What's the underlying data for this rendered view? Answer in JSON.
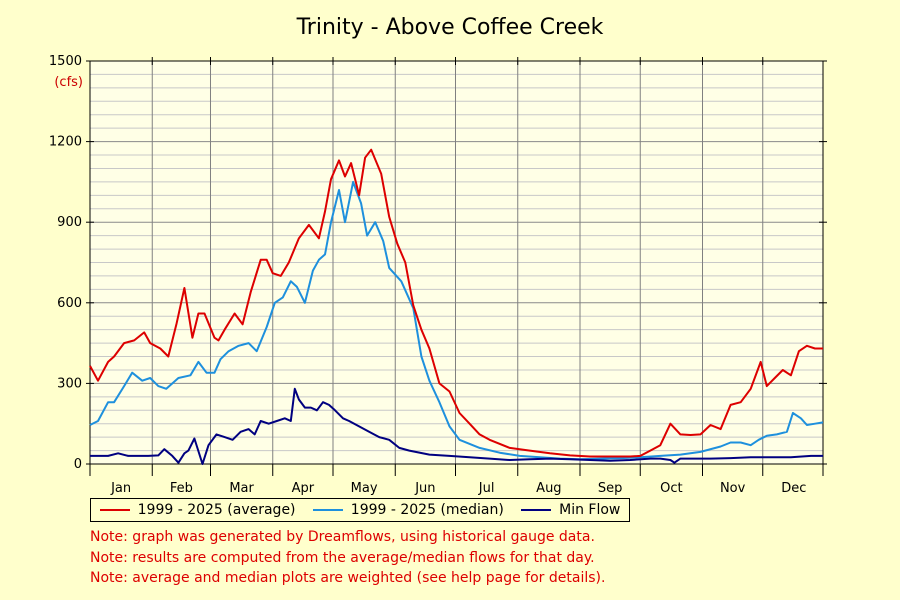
{
  "chart_data": {
    "type": "line",
    "title": "Trinity - Above Coffee Creek",
    "ylabel": "(cfs)",
    "ylim": [
      0,
      1500
    ],
    "y_ticks": [
      0,
      300,
      600,
      900,
      1200,
      1500
    ],
    "x_categories": [
      "Jan",
      "Feb",
      "Mar",
      "Apr",
      "May",
      "Jun",
      "Jul",
      "Aug",
      "Sep",
      "Oct",
      "Nov",
      "Dec"
    ],
    "x_domain": [
      1,
      366
    ],
    "grid": true,
    "legend_position": "bottom",
    "series": [
      {
        "name": "1999 - 2025 (average)",
        "color": "#dd0000",
        "x": [
          1,
          5,
          10,
          13,
          18,
          23,
          28,
          31,
          36,
          40,
          44,
          48,
          52,
          55,
          58,
          63,
          65,
          68,
          73,
          77,
          81,
          86,
          89,
          92,
          96,
          100,
          105,
          110,
          115,
          118,
          121,
          125,
          128,
          131,
          135,
          138,
          141,
          146,
          150,
          154,
          158,
          162,
          166,
          170,
          175,
          180,
          185,
          190,
          195,
          200,
          210,
          220,
          230,
          240,
          250,
          260,
          266,
          270,
          275,
          280,
          285,
          290,
          295,
          300,
          305,
          310,
          315,
          320,
          325,
          330,
          335,
          338,
          342,
          346,
          350,
          354,
          358,
          362,
          366
        ],
        "y": [
          365,
          310,
          380,
          400,
          450,
          460,
          490,
          450,
          430,
          400,
          520,
          655,
          470,
          560,
          560,
          470,
          460,
          500,
          560,
          520,
          640,
          760,
          760,
          710,
          700,
          750,
          840,
          890,
          840,
          940,
          1060,
          1130,
          1070,
          1120,
          1000,
          1140,
          1170,
          1080,
          920,
          820,
          750,
          590,
          500,
          430,
          300,
          270,
          190,
          150,
          110,
          90,
          60,
          50,
          40,
          32,
          28,
          28,
          28,
          28,
          30,
          50,
          70,
          150,
          110,
          108,
          110,
          145,
          130,
          220,
          230,
          280,
          380,
          290,
          320,
          350,
          330,
          420,
          440,
          430,
          430
        ]
      },
      {
        "name": "1999 - 2025 (median)",
        "color": "#1e90dd",
        "x": [
          1,
          5,
          10,
          13,
          18,
          22,
          27,
          31,
          35,
          39,
          45,
          51,
          55,
          59,
          63,
          66,
          70,
          75,
          80,
          84,
          89,
          93,
          97,
          101,
          104,
          108,
          112,
          115,
          118,
          121,
          125,
          128,
          132,
          136,
          139,
          143,
          147,
          150,
          156,
          162,
          166,
          170,
          175,
          180,
          185,
          195,
          205,
          215,
          225,
          235,
          245,
          255,
          265,
          275,
          285,
          295,
          305,
          315,
          320,
          325,
          330,
          334,
          338,
          343,
          348,
          351,
          355,
          358,
          362,
          366
        ],
        "y": [
          145,
          160,
          230,
          230,
          290,
          340,
          310,
          320,
          290,
          280,
          320,
          330,
          380,
          340,
          340,
          390,
          420,
          440,
          450,
          420,
          510,
          600,
          620,
          680,
          660,
          600,
          720,
          760,
          780,
          900,
          1020,
          900,
          1050,
          970,
          850,
          900,
          830,
          730,
          680,
          580,
          400,
          310,
          230,
          140,
          90,
          60,
          42,
          30,
          25,
          20,
          18,
          20,
          22,
          25,
          30,
          35,
          45,
          65,
          80,
          80,
          70,
          90,
          105,
          110,
          120,
          190,
          170,
          145,
          150,
          155
        ]
      },
      {
        "name": "Min Flow",
        "color": "#000080",
        "x": [
          1,
          10,
          15,
          20,
          25,
          30,
          35,
          38,
          42,
          45,
          48,
          50,
          53,
          57,
          60,
          64,
          68,
          72,
          76,
          80,
          83,
          86,
          90,
          94,
          98,
          101,
          103,
          105,
          108,
          111,
          114,
          117,
          120,
          123,
          127,
          130,
          135,
          140,
          145,
          150,
          155,
          160,
          170,
          180,
          190,
          200,
          210,
          220,
          230,
          240,
          250,
          260,
          270,
          280,
          285,
          290,
          292,
          295,
          300,
          310,
          320,
          330,
          340,
          350,
          360,
          366
        ],
        "y": [
          30,
          30,
          40,
          30,
          30,
          30,
          32,
          55,
          30,
          5,
          40,
          50,
          95,
          0,
          70,
          110,
          100,
          90,
          120,
          130,
          110,
          160,
          150,
          160,
          170,
          160,
          280,
          240,
          210,
          210,
          200,
          230,
          220,
          200,
          170,
          160,
          140,
          120,
          100,
          90,
          60,
          50,
          35,
          30,
          25,
          20,
          15,
          18,
          20,
          18,
          15,
          12,
          15,
          20,
          20,
          15,
          5,
          20,
          20,
          20,
          22,
          25,
          25,
          25,
          30,
          30
        ]
      }
    ]
  },
  "notes": [
    "Note: graph was generated by Dreamflows, using historical gauge data.",
    "Note: results are computed from the average/median flows for that day.",
    "Note: average and median plots are weighted (see help page for details)."
  ]
}
